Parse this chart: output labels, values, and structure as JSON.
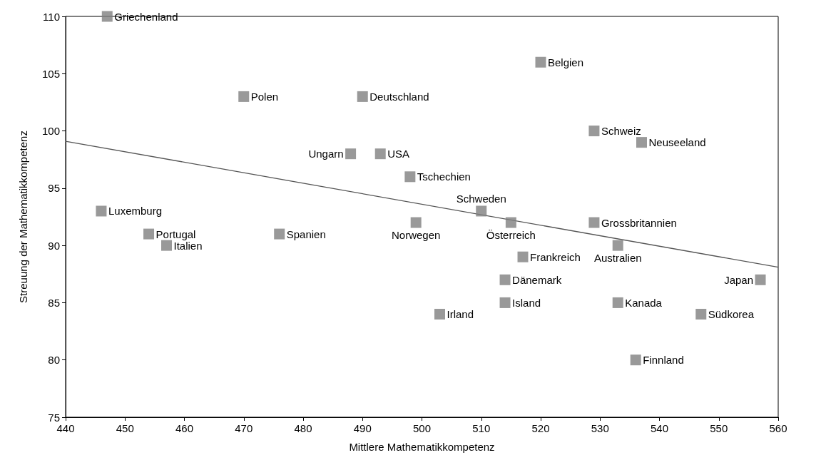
{
  "chart_data": {
    "type": "scatter",
    "xlabel": "Mittlere Mathematikkompetenz",
    "ylabel": "Streuung der Mathematikkompetenz",
    "xlim": [
      440,
      560
    ],
    "xticks": [
      440,
      450,
      460,
      470,
      480,
      490,
      500,
      510,
      520,
      530,
      540,
      550,
      560
    ],
    "ylim": [
      75,
      110
    ],
    "yticks": [
      75,
      80,
      85,
      90,
      95,
      100,
      105,
      110
    ],
    "grid": false,
    "marker": "square",
    "series": [
      {
        "color": "#808080",
        "x": [
          447,
          470,
          490,
          488,
          493,
          498,
          510,
          499,
          515,
          529,
          537,
          529,
          533,
          517,
          514,
          514,
          503,
          533,
          547,
          557,
          536,
          446,
          454,
          457,
          476,
          520
        ],
        "values": [
          110,
          103,
          103,
          98,
          98,
          96,
          93,
          92,
          92,
          100,
          99,
          92,
          90,
          89,
          87,
          85,
          84,
          85,
          84,
          87,
          80,
          93,
          91,
          90,
          91,
          106
        ]
      },
      {
        "type": "line",
        "color": "#555555",
        "marker": "none",
        "x": [
          440,
          560
        ],
        "values": [
          99.1,
          88.1
        ]
      }
    ],
    "annotations": [
      {
        "text": "Griechenland",
        "x": 447,
        "y": 110
      },
      {
        "text": "Polen",
        "x": 470,
        "y": 103
      },
      {
        "text": "Deutschland",
        "x": 490,
        "y": 103
      },
      {
        "text": "Ungarn",
        "x": 488,
        "y": 98
      },
      {
        "text": "USA",
        "x": 493,
        "y": 98
      },
      {
        "text": "Tschechien",
        "x": 498,
        "y": 96
      },
      {
        "text": "Schweden",
        "x": 510,
        "y": 93
      },
      {
        "text": "Norwegen",
        "x": 499,
        "y": 92
      },
      {
        "text": "Österreich",
        "x": 515,
        "y": 92
      },
      {
        "text": "Schweiz",
        "x": 529,
        "y": 100
      },
      {
        "text": "Neuseeland",
        "x": 537,
        "y": 99
      },
      {
        "text": "Grossbritannien",
        "x": 529,
        "y": 92
      },
      {
        "text": "Australien",
        "x": 533,
        "y": 90
      },
      {
        "text": "Frankreich",
        "x": 517,
        "y": 89
      },
      {
        "text": "Dänemark",
        "x": 514,
        "y": 87
      },
      {
        "text": "Island",
        "x": 514,
        "y": 85
      },
      {
        "text": "Irland",
        "x": 503,
        "y": 84
      },
      {
        "text": "Kanada",
        "x": 533,
        "y": 85
      },
      {
        "text": "Südkorea",
        "x": 547,
        "y": 84
      },
      {
        "text": "Japan",
        "x": 557,
        "y": 87
      },
      {
        "text": "Finnland",
        "x": 536,
        "y": 80
      },
      {
        "text": "Luxemburg",
        "x": 446,
        "y": 93
      },
      {
        "text": "Portugal",
        "x": 454,
        "y": 91
      },
      {
        "text": "Italien",
        "x": 457,
        "y": 90
      },
      {
        "text": "Spanien",
        "x": 476,
        "y": 91
      },
      {
        "text": "Belgien",
        "x": 520,
        "y": 106
      }
    ]
  }
}
